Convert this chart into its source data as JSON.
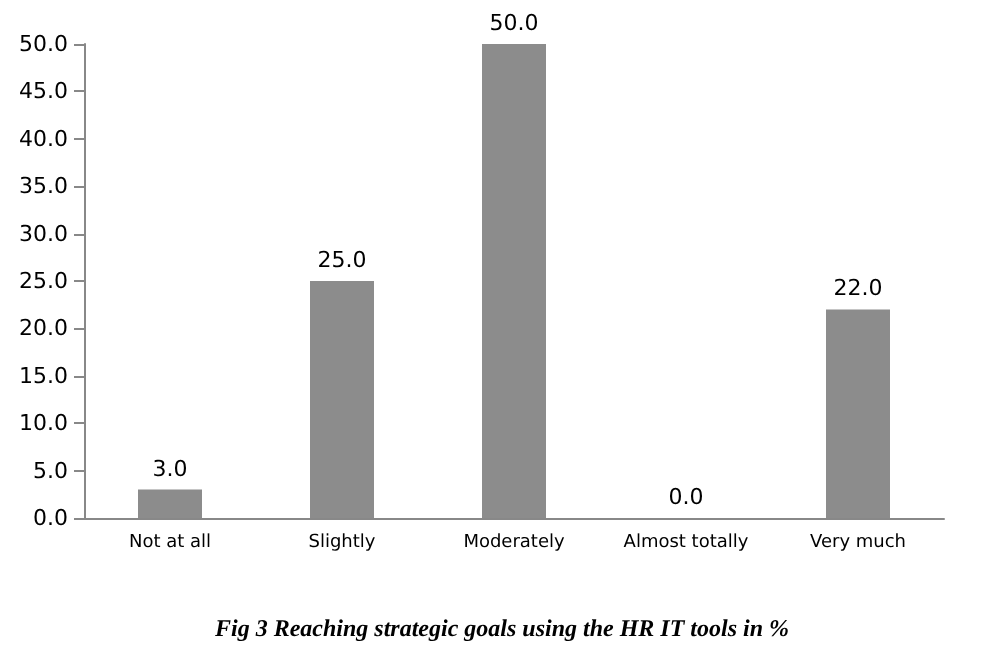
{
  "chart_data": {
    "type": "bar",
    "title": "Fig 3 Reaching strategic goals using the HR IT tools in %",
    "categories": [
      "Not at all",
      "Slightly",
      "Moderately",
      "Almost totally",
      "Very much"
    ],
    "values": [
      3,
      25,
      50,
      0,
      22
    ],
    "value_labels": [
      "3.0",
      "25.0",
      "50.0",
      "0.0",
      "22.0"
    ],
    "color": "#8c8c8c",
    "ylim": [
      0,
      50
    ],
    "yticks": [
      {
        "value": 0,
        "label": "0.0"
      },
      {
        "value": 5,
        "label": "5.0"
      },
      {
        "value": 10,
        "label": "10.0"
      },
      {
        "value": 15,
        "label": "15.0"
      },
      {
        "value": 20,
        "label": "20.0"
      },
      {
        "value": 25,
        "label": "25.0"
      },
      {
        "value": 30,
        "label": "30.0"
      },
      {
        "value": 35,
        "label": "35.0"
      },
      {
        "value": 40,
        "label": "40.0"
      },
      {
        "value": 45,
        "label": "45.0"
      },
      {
        "value": 50,
        "label": "50.0"
      }
    ],
    "grid": false
  }
}
